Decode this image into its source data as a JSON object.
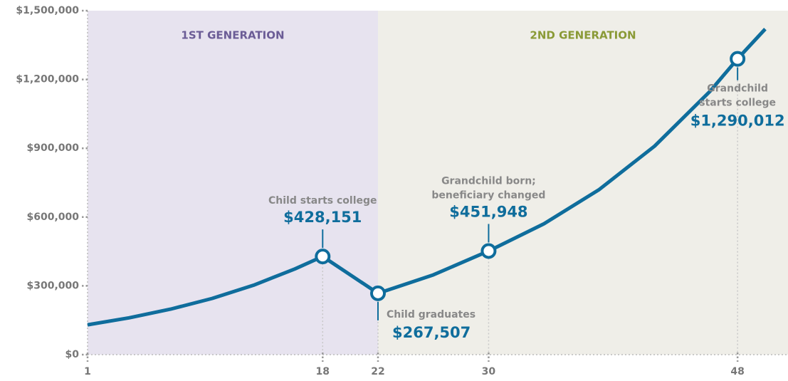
{
  "chart_data": {
    "type": "line",
    "regions": [
      {
        "label": "1ST GENERATION",
        "from": 1,
        "color": "#e7e3ef",
        "label_color": "#6b5c96"
      },
      {
        "label": "2ND GENERATION",
        "from": 22,
        "color": "#efeee8",
        "label_color": "#8a9a36"
      }
    ],
    "series": [
      {
        "color": "#0f6d9c",
        "x": [
          1,
          4,
          7,
          10,
          13,
          16,
          18,
          22,
          26,
          30,
          34,
          38,
          42,
          46,
          48,
          50
        ],
        "values": [
          130000,
          160600,
          198400,
          245000,
          302700,
          374000,
          428151,
          267507,
          348000,
          451948,
          570600,
          720300,
          909400,
          1148000,
          1290012,
          1420000
        ]
      }
    ],
    "points": {
      "x": [
        18,
        22,
        30,
        48
      ],
      "values": [
        428151,
        267507,
        451948,
        1290012
      ],
      "value_labels": [
        "$428,151",
        "$267,507",
        "$451,948",
        "$1,290,012"
      ],
      "annotations": [
        [
          "Child starts college"
        ],
        [
          "Child graduates"
        ],
        [
          "Grandchild born;",
          "beneficiary changed"
        ],
        [
          "Grandchild",
          "starts college"
        ]
      ]
    },
    "xlim": [
      1,
      50
    ],
    "xticks": [
      1,
      18,
      22,
      30,
      48
    ],
    "ylim": [
      0,
      1500000
    ],
    "yticks": [
      {
        "value": 0,
        "label": "$0"
      },
      {
        "value": 300000,
        "label": "$300,000"
      },
      {
        "value": 600000,
        "label": "$600,000"
      },
      {
        "value": 900000,
        "label": "$900,000"
      },
      {
        "value": 1200000,
        "label": "$1,200,000"
      },
      {
        "value": 1500000,
        "label": "$1,500,000"
      }
    ]
  }
}
